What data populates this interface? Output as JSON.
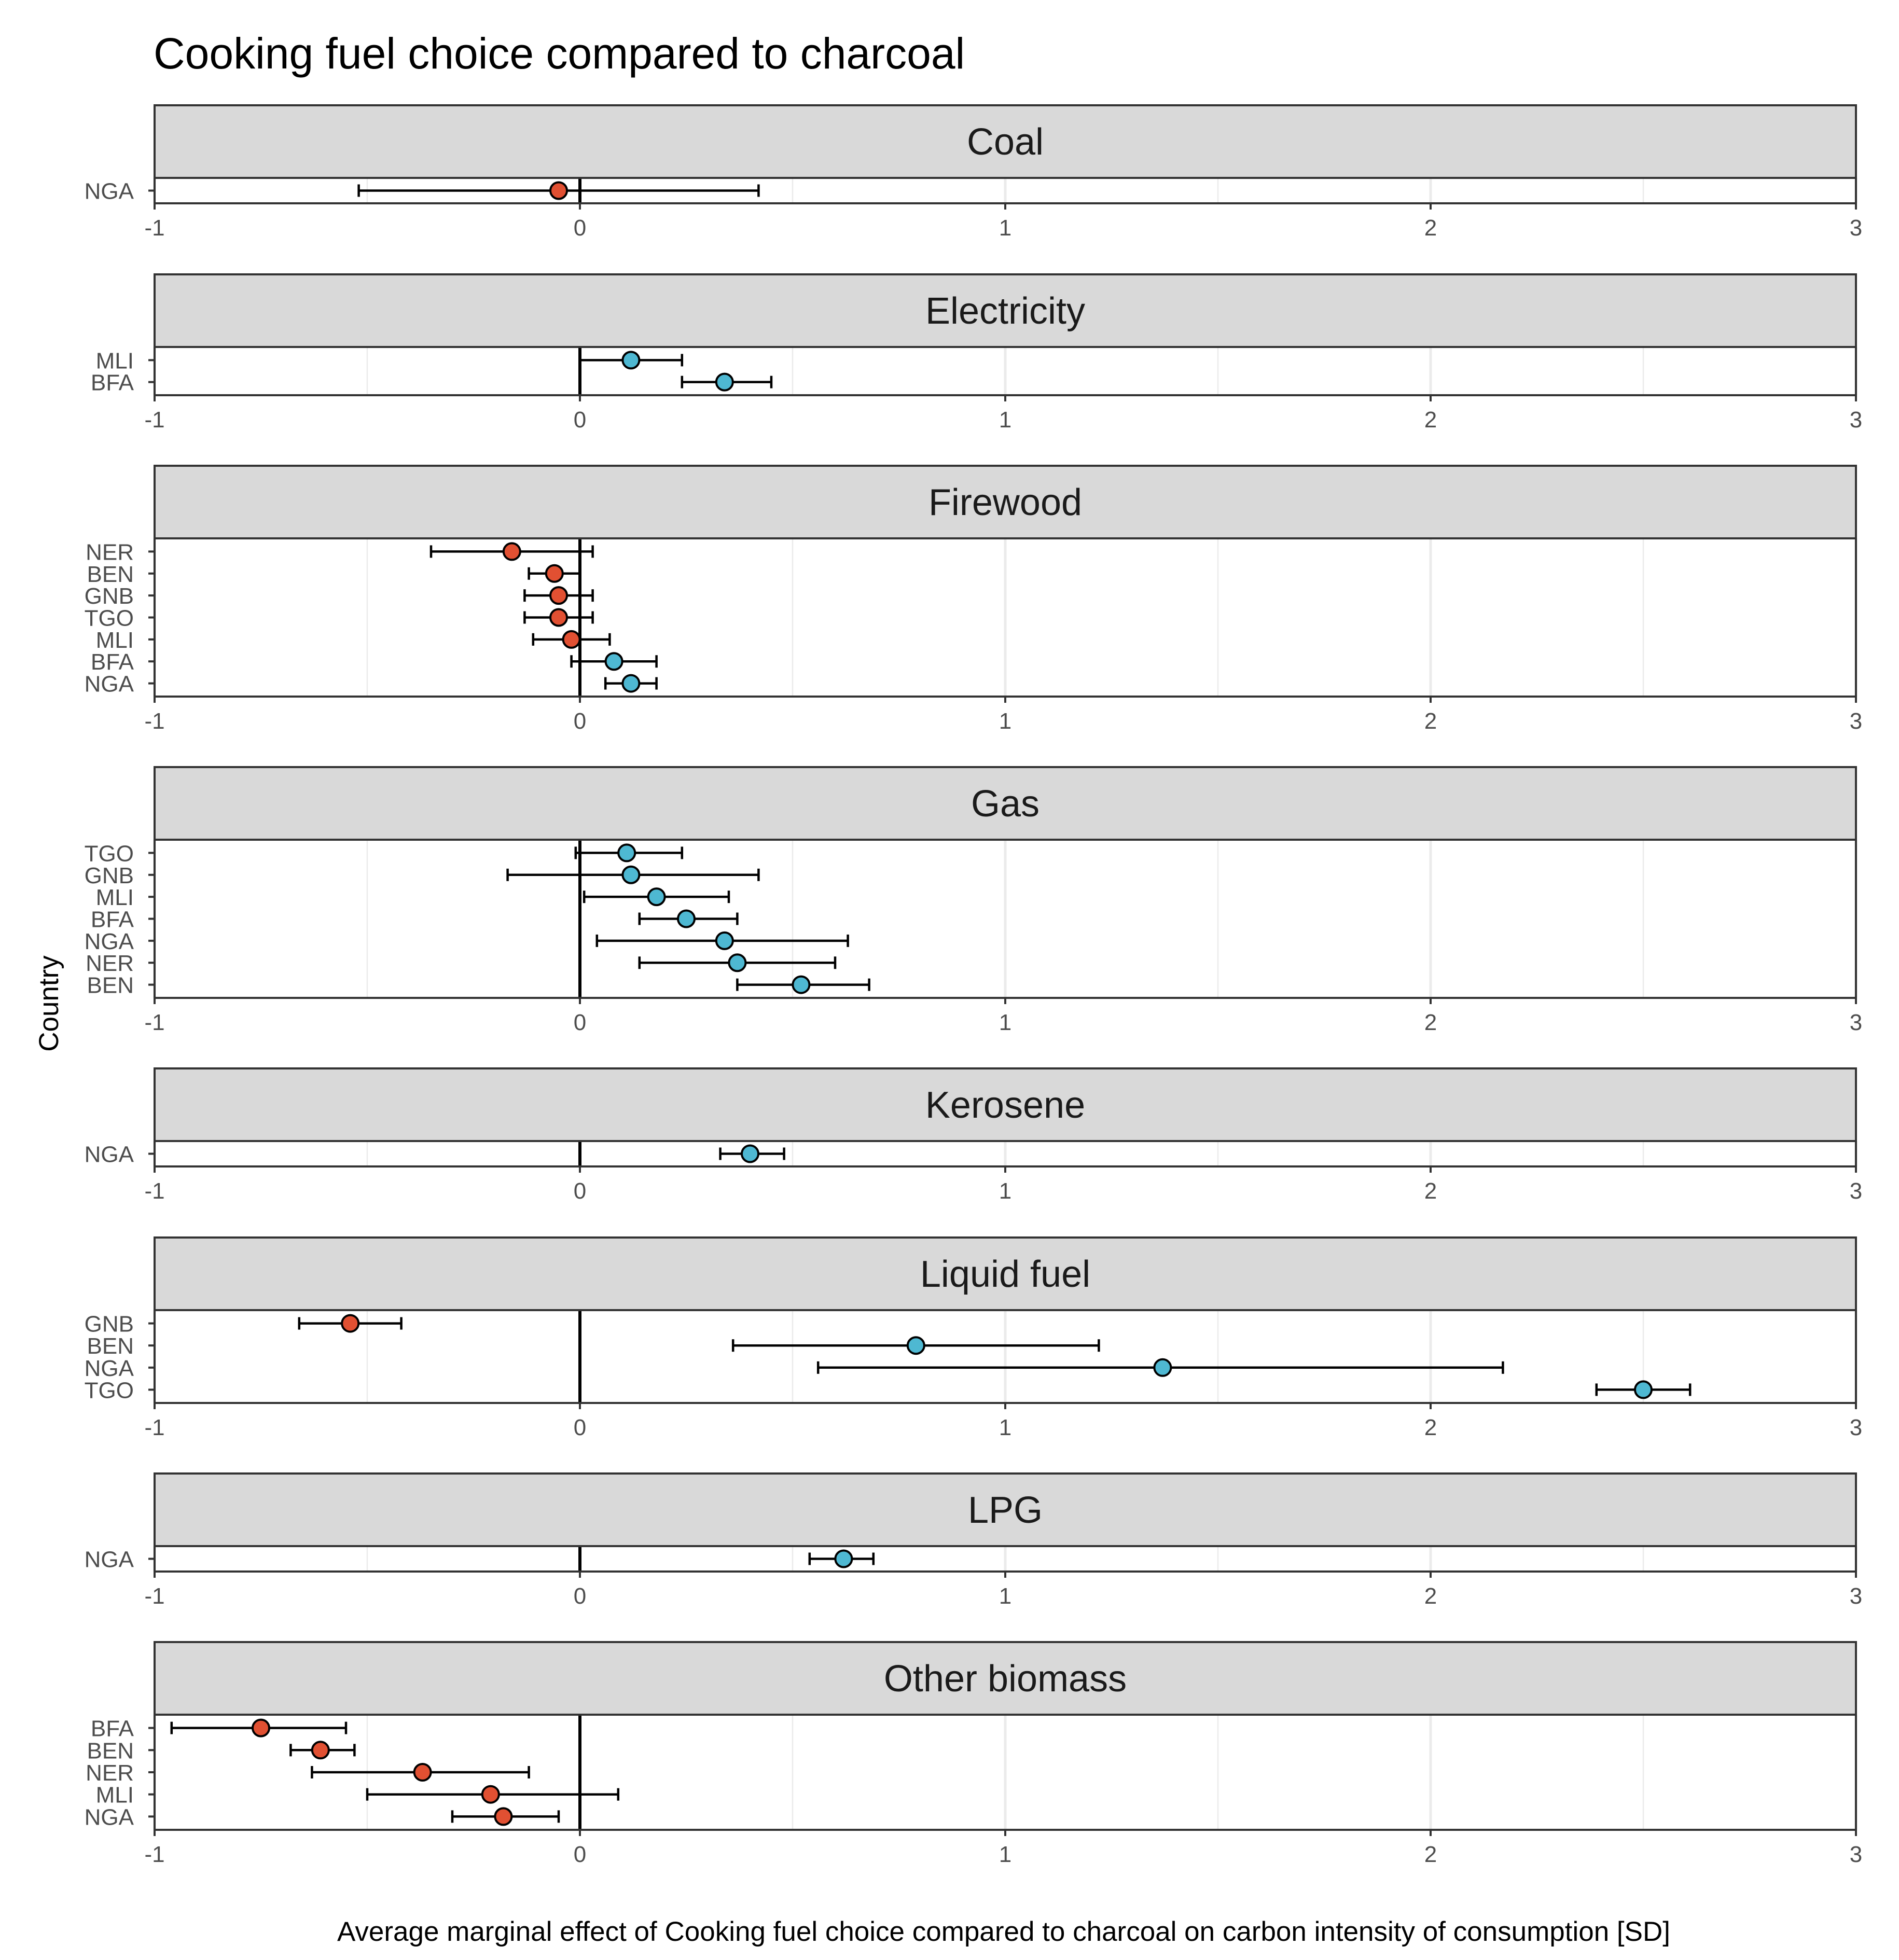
{
  "chart_data": {
    "type": "scatter",
    "title": "Cooking fuel choice compared to charcoal",
    "xlabel": "Average marginal effect of Cooking fuel choice compared to charcoal on carbon intensity of consumption [SD]",
    "ylabel": "Country",
    "xlim": [
      -1,
      3
    ],
    "xticks": [
      -1,
      0,
      1,
      2,
      3
    ],
    "reference_line": 0,
    "grid": true,
    "colors": {
      "negative": "#E15032",
      "positive": "#4EB8D2",
      "strip": "#D9D9D9",
      "grid": "#EBEBEB"
    },
    "panels": [
      {
        "name": "Coal",
        "points": [
          {
            "country": "NGA",
            "estimate": -0.05,
            "ci_low": -0.52,
            "ci_high": 0.42
          }
        ]
      },
      {
        "name": "Electricity",
        "points": [
          {
            "country": "MLI",
            "estimate": 0.12,
            "ci_low": 0.0,
            "ci_high": 0.24
          },
          {
            "country": "BFA",
            "estimate": 0.34,
            "ci_low": 0.24,
            "ci_high": 0.45
          }
        ]
      },
      {
        "name": "Firewood",
        "points": [
          {
            "country": "NER",
            "estimate": -0.16,
            "ci_low": -0.35,
            "ci_high": 0.03
          },
          {
            "country": "BEN",
            "estimate": -0.06,
            "ci_low": -0.12,
            "ci_high": 0.0
          },
          {
            "country": "GNB",
            "estimate": -0.05,
            "ci_low": -0.13,
            "ci_high": 0.03
          },
          {
            "country": "TGO",
            "estimate": -0.05,
            "ci_low": -0.13,
            "ci_high": 0.03
          },
          {
            "country": "MLI",
            "estimate": -0.02,
            "ci_low": -0.11,
            "ci_high": 0.07
          },
          {
            "country": "BFA",
            "estimate": 0.08,
            "ci_low": -0.02,
            "ci_high": 0.18
          },
          {
            "country": "NGA",
            "estimate": 0.12,
            "ci_low": 0.06,
            "ci_high": 0.18
          }
        ]
      },
      {
        "name": "Gas",
        "points": [
          {
            "country": "TGO",
            "estimate": 0.11,
            "ci_low": -0.01,
            "ci_high": 0.24
          },
          {
            "country": "GNB",
            "estimate": 0.12,
            "ci_low": -0.17,
            "ci_high": 0.42
          },
          {
            "country": "MLI",
            "estimate": 0.18,
            "ci_low": 0.01,
            "ci_high": 0.35
          },
          {
            "country": "BFA",
            "estimate": 0.25,
            "ci_low": 0.14,
            "ci_high": 0.37
          },
          {
            "country": "NGA",
            "estimate": 0.34,
            "ci_low": 0.04,
            "ci_high": 0.63
          },
          {
            "country": "NER",
            "estimate": 0.37,
            "ci_low": 0.14,
            "ci_high": 0.6
          },
          {
            "country": "BEN",
            "estimate": 0.52,
            "ci_low": 0.37,
            "ci_high": 0.68
          }
        ]
      },
      {
        "name": "Kerosene",
        "points": [
          {
            "country": "NGA",
            "estimate": 0.4,
            "ci_low": 0.33,
            "ci_high": 0.48
          }
        ]
      },
      {
        "name": "Liquid fuel",
        "points": [
          {
            "country": "GNB",
            "estimate": -0.54,
            "ci_low": -0.66,
            "ci_high": -0.42
          },
          {
            "country": "BEN",
            "estimate": 0.79,
            "ci_low": 0.36,
            "ci_high": 1.22
          },
          {
            "country": "NGA",
            "estimate": 1.37,
            "ci_low": 0.56,
            "ci_high": 2.17
          },
          {
            "country": "TGO",
            "estimate": 2.5,
            "ci_low": 2.39,
            "ci_high": 2.61
          }
        ]
      },
      {
        "name": "LPG",
        "points": [
          {
            "country": "NGA",
            "estimate": 0.62,
            "ci_low": 0.54,
            "ci_high": 0.69
          }
        ]
      },
      {
        "name": "Other biomass",
        "points": [
          {
            "country": "BFA",
            "estimate": -0.75,
            "ci_low": -0.96,
            "ci_high": -0.55
          },
          {
            "country": "BEN",
            "estimate": -0.61,
            "ci_low": -0.68,
            "ci_high": -0.53
          },
          {
            "country": "NER",
            "estimate": -0.37,
            "ci_low": -0.63,
            "ci_high": -0.12
          },
          {
            "country": "MLI",
            "estimate": -0.21,
            "ci_low": -0.5,
            "ci_high": 0.09
          },
          {
            "country": "NGA",
            "estimate": -0.18,
            "ci_low": -0.3,
            "ci_high": -0.05
          }
        ]
      }
    ]
  }
}
